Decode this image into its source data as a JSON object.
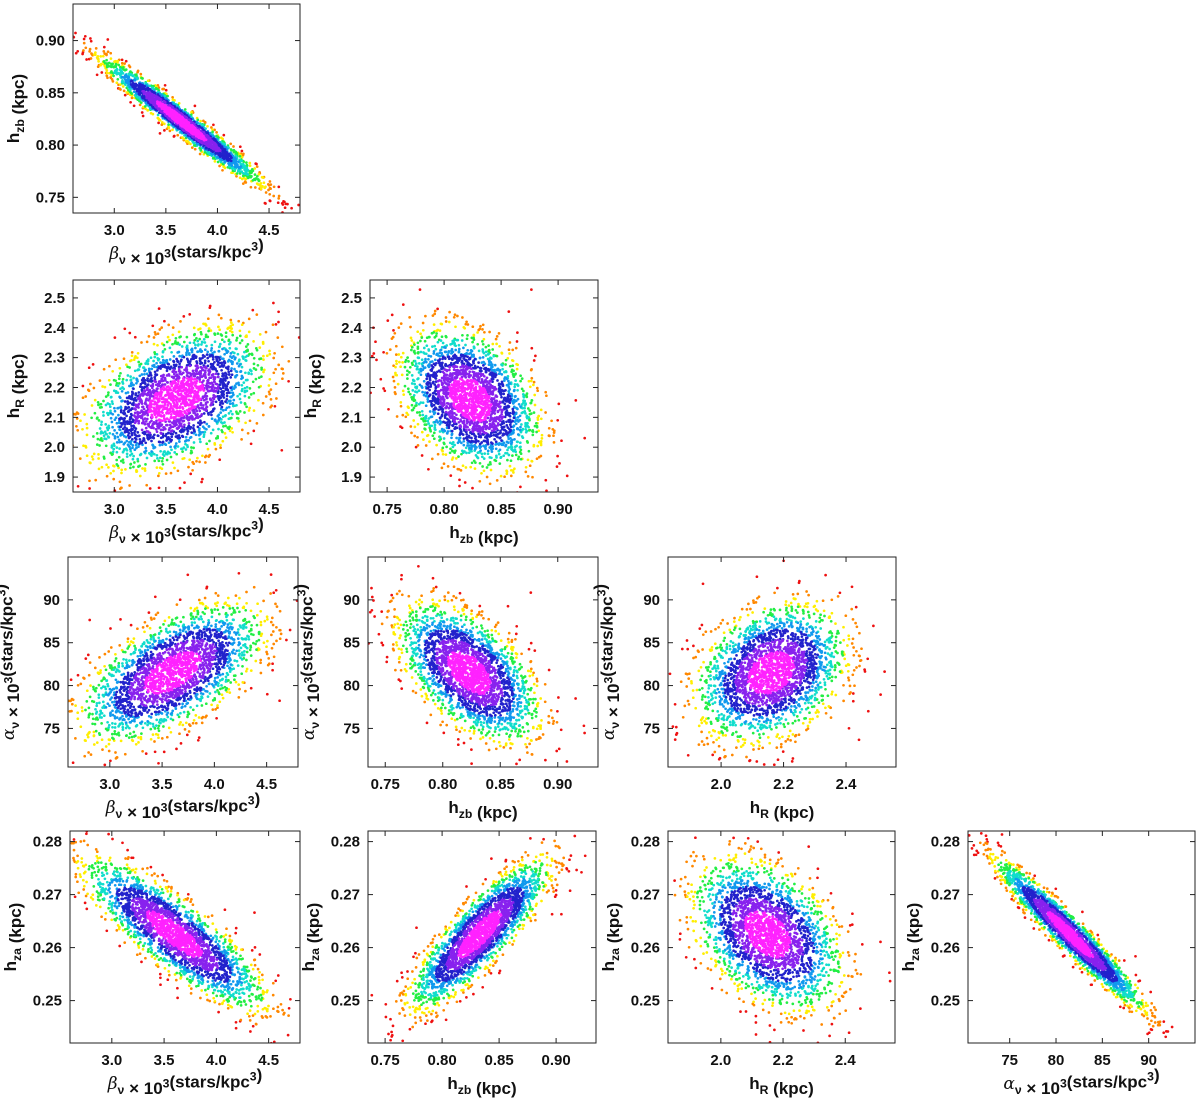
{
  "colors": {
    "density_scale": [
      "#ee1111",
      "#ff8800",
      "#ffee00",
      "#22ee44",
      "#11ddcc",
      "#1199ee",
      "#2222cc",
      "#8822ee",
      "#ff22ff"
    ],
    "frame": "#222222"
  },
  "chart_data": [
    {
      "type": "scatter",
      "panel": "beta-vs-hzb",
      "xlabel": "β_ν × 10³(stars/kpc³)",
      "ylabel": "h_zb (kpc)",
      "xlim": [
        2.6,
        4.8
      ],
      "ylim": [
        0.735,
        0.935
      ],
      "xticks": [
        3.0,
        3.5,
        4.0,
        4.5
      ],
      "xtick_labels": [
        "3.0",
        "3.5",
        "4.0",
        "4.5"
      ],
      "yticks": [
        0.75,
        0.8,
        0.85,
        0.9
      ],
      "ytick_labels": [
        "0.75",
        "0.80",
        "0.85",
        "0.90"
      ],
      "distribution": {
        "mean": [
          3.65,
          0.823
        ],
        "sd": [
          0.36,
          0.028
        ],
        "corr": -0.97,
        "n_points": 2400
      }
    },
    {
      "type": "scatter",
      "panel": "beta-vs-hR",
      "xlabel": "β_ν × 10³(stars/kpc³)",
      "ylabel": "h_R (kpc)",
      "xlim": [
        2.6,
        4.8
      ],
      "ylim": [
        1.85,
        2.56
      ],
      "xticks": [
        3.0,
        3.5,
        4.0,
        4.5
      ],
      "xtick_labels": [
        "3.0",
        "3.5",
        "4.0",
        "4.5"
      ],
      "yticks": [
        1.9,
        2.0,
        2.1,
        2.2,
        2.3,
        2.4,
        2.5
      ],
      "ytick_labels": [
        "1.9",
        "2.0",
        "2.1",
        "2.2",
        "2.3",
        "2.4",
        "2.5"
      ],
      "distribution": {
        "mean": [
          3.6,
          2.16
        ],
        "sd": [
          0.4,
          0.11
        ],
        "corr": 0.45,
        "n_points": 2400
      }
    },
    {
      "type": "scatter",
      "panel": "hzb-vs-hR",
      "xlabel": "h_zb (kpc)",
      "ylabel": "h_R (kpc)",
      "xlim": [
        0.735,
        0.935
      ],
      "ylim": [
        1.85,
        2.56
      ],
      "xticks": [
        0.75,
        0.8,
        0.85,
        0.9
      ],
      "xtick_labels": [
        "0.75",
        "0.80",
        "0.85",
        "0.90"
      ],
      "yticks": [
        1.9,
        2.0,
        2.1,
        2.2,
        2.3,
        2.4,
        2.5
      ],
      "ytick_labels": [
        "1.9",
        "2.0",
        "2.1",
        "2.2",
        "2.3",
        "2.4",
        "2.5"
      ],
      "distribution": {
        "mean": [
          0.823,
          2.16
        ],
        "sd": [
          0.028,
          0.11
        ],
        "corr": -0.35,
        "n_points": 2400
      }
    },
    {
      "type": "scatter",
      "panel": "beta-vs-alpha",
      "xlabel": "β_ν × 10³(stars/kpc³)",
      "ylabel": "α_ν × 10³(stars/kpc³)",
      "xlim": [
        2.6,
        4.8
      ],
      "ylim": [
        70.5,
        95
      ],
      "xticks": [
        3.0,
        3.5,
        4.0,
        4.5
      ],
      "xtick_labels": [
        "3.0",
        "3.5",
        "4.0",
        "4.5"
      ],
      "yticks": [
        75,
        80,
        85,
        90
      ],
      "ytick_labels": [
        "75",
        "80",
        "85",
        "90"
      ],
      "distribution": {
        "mean": [
          3.6,
          81.5
        ],
        "sd": [
          0.4,
          3.7
        ],
        "corr": 0.6,
        "n_points": 2400
      }
    },
    {
      "type": "scatter",
      "panel": "hzb-vs-alpha",
      "xlabel": "h_zb (kpc)",
      "ylabel": "α_ν × 10³(stars/kpc³)",
      "xlim": [
        0.735,
        0.935
      ],
      "ylim": [
        70.5,
        95
      ],
      "xticks": [
        0.75,
        0.8,
        0.85,
        0.9
      ],
      "xtick_labels": [
        "0.75",
        "0.80",
        "0.85",
        "0.90"
      ],
      "yticks": [
        75,
        80,
        85,
        90
      ],
      "ytick_labels": [
        "75",
        "80",
        "85",
        "90"
      ],
      "distribution": {
        "mean": [
          0.823,
          81.5
        ],
        "sd": [
          0.028,
          3.7
        ],
        "corr": -0.55,
        "n_points": 2400
      }
    },
    {
      "type": "scatter",
      "panel": "hR-vs-alpha",
      "xlabel": "h_R (kpc)",
      "ylabel": "α_ν × 10³(stars/kpc³)",
      "xlim": [
        1.83,
        2.56
      ],
      "ylim": [
        70.5,
        95
      ],
      "xticks": [
        2.0,
        2.2,
        2.4
      ],
      "xtick_labels": [
        "2.0",
        "2.2",
        "2.4"
      ],
      "yticks": [
        75,
        80,
        85,
        90
      ],
      "ytick_labels": [
        "75",
        "80",
        "85",
        "90"
      ],
      "distribution": {
        "mean": [
          2.16,
          81.5
        ],
        "sd": [
          0.11,
          3.7
        ],
        "corr": 0.3,
        "n_points": 2400
      }
    },
    {
      "type": "scatter",
      "panel": "beta-vs-hza",
      "xlabel": "β_ν × 10³(stars/kpc³)",
      "ylabel": "h_za (kpc)",
      "xlim": [
        2.6,
        4.8
      ],
      "ylim": [
        0.242,
        0.282
      ],
      "xticks": [
        3.0,
        3.5,
        4.0,
        4.5
      ],
      "xtick_labels": [
        "3.0",
        "3.5",
        "4.0",
        "4.5"
      ],
      "yticks": [
        0.25,
        0.26,
        0.27,
        0.28
      ],
      "ytick_labels": [
        "0.25",
        "0.26",
        "0.27",
        "0.28"
      ],
      "distribution": {
        "mean": [
          3.6,
          0.2625
        ],
        "sd": [
          0.4,
          0.0065
        ],
        "corr": -0.85,
        "n_points": 2400
      }
    },
    {
      "type": "scatter",
      "panel": "hzb-vs-hza",
      "xlabel": "h_zb (kpc)",
      "ylabel": "h_za (kpc)",
      "xlim": [
        0.735,
        0.935
      ],
      "ylim": [
        0.242,
        0.282
      ],
      "xticks": [
        0.75,
        0.8,
        0.85,
        0.9
      ],
      "xtick_labels": [
        "0.75",
        "0.80",
        "0.85",
        "0.90"
      ],
      "yticks": [
        0.25,
        0.26,
        0.27,
        0.28
      ],
      "ytick_labels": [
        "0.25",
        "0.26",
        "0.27",
        "0.28"
      ],
      "distribution": {
        "mean": [
          0.833,
          0.2625
        ],
        "sd": [
          0.028,
          0.0065
        ],
        "corr": 0.85,
        "n_points": 2400
      }
    },
    {
      "type": "scatter",
      "panel": "hR-vs-hza",
      "xlabel": "h_R (kpc)",
      "ylabel": "h_za (kpc)",
      "xlim": [
        1.83,
        2.56
      ],
      "ylim": [
        0.242,
        0.282
      ],
      "xticks": [
        2.0,
        2.2,
        2.4
      ],
      "xtick_labels": [
        "2.0",
        "2.2",
        "2.4"
      ],
      "yticks": [
        0.25,
        0.26,
        0.27,
        0.28
      ],
      "ytick_labels": [
        "0.25",
        "0.26",
        "0.27",
        "0.28"
      ],
      "distribution": {
        "mean": [
          2.15,
          0.2625
        ],
        "sd": [
          0.11,
          0.0065
        ],
        "corr": -0.4,
        "n_points": 2400
      }
    },
    {
      "type": "scatter",
      "panel": "alpha-vs-hza",
      "xlabel": "α_ν × 10³(stars/kpc³)",
      "ylabel": "h_za (kpc)",
      "xlim": [
        70.5,
        95
      ],
      "ylim": [
        0.242,
        0.282
      ],
      "xticks": [
        75,
        80,
        85,
        90
      ],
      "xtick_labels": [
        "75",
        "80",
        "85",
        "90"
      ],
      "yticks": [
        0.25,
        0.26,
        0.27,
        0.28
      ],
      "ytick_labels": [
        "0.25",
        "0.26",
        "0.27",
        "0.28"
      ],
      "distribution": {
        "mean": [
          81.5,
          0.2625
        ],
        "sd": [
          3.7,
          0.0065
        ],
        "corr": -0.96,
        "n_points": 2400
      }
    }
  ]
}
